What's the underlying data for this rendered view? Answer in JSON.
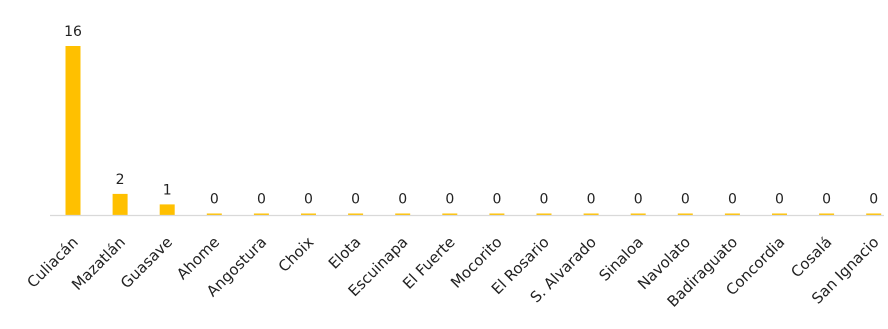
{
  "chart_data": {
    "type": "bar",
    "categories": [
      "Culiacán",
      "Mazatlán",
      "Guasave",
      "Ahome",
      "Angostura",
      "Choix",
      "Elota",
      "Escuinapa",
      "El Fuerte",
      "Mocorito",
      "El Rosario",
      "S. Alvarado",
      "Sinaloa",
      "Navolato",
      "Badiraguato",
      "Concordia",
      "Cosalá",
      "San Ignacio"
    ],
    "values": [
      16,
      2,
      1,
      0,
      0,
      0,
      0,
      0,
      0,
      0,
      0,
      0,
      0,
      0,
      0,
      0,
      0,
      0
    ],
    "value_labels": [
      "16",
      "2",
      "1",
      "0",
      "0",
      "0",
      "0",
      "0",
      "0",
      "0",
      "0",
      "0",
      "0",
      "0",
      "0",
      "0",
      "0",
      "0"
    ],
    "title": "",
    "xlabel": "",
    "ylabel": "",
    "ylim": [
      0,
      16
    ],
    "grid": false,
    "legend": "none",
    "bar_color": "#FFC000",
    "axis_color": "#D9D9D9"
  }
}
